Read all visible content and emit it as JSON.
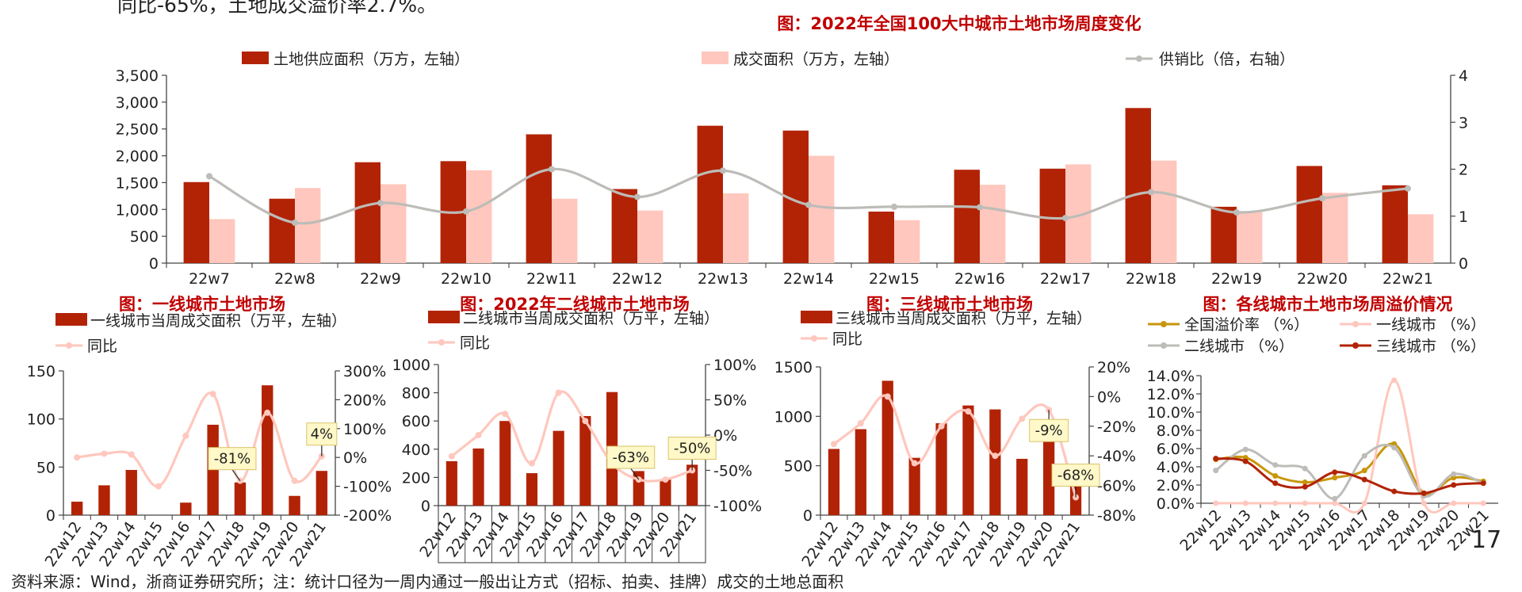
{
  "page": {
    "top_fragment": "同比-65%，土地成交溢价率2.7%。",
    "footer": "资料来源：Wind，浙商证券研究所；注：统计口径为一周内通过一般出让方式（招标、拍卖、挂牌）成交的土地总面积",
    "page_number": "17"
  },
  "colors": {
    "dark_red": "#b22306",
    "pink": "#ffc7bd",
    "gray": "#bdbcb8",
    "gold": "#c8960c",
    "title_red": "#c00000"
  },
  "chart_data": [
    {
      "id": "main",
      "type": "bar",
      "title": "图：2022年全国100大中城市土地市场周度变化",
      "categories": [
        "22w7",
        "22w8",
        "22w9",
        "22w10",
        "22w11",
        "22w12",
        "22w13",
        "22w14",
        "22w15",
        "22w16",
        "22w17",
        "22w18",
        "22w19",
        "22w20",
        "22w21"
      ],
      "series": [
        {
          "name": "土地供应面积（万方，左轴）",
          "type": "bar",
          "axis": "left",
          "values": [
            1510,
            1200,
            1880,
            1900,
            2400,
            1380,
            2560,
            2470,
            960,
            1740,
            1760,
            2890,
            1050,
            1810,
            1450
          ]
        },
        {
          "name": "成交面积（万方，左轴）",
          "type": "bar",
          "axis": "left",
          "values": [
            820,
            1400,
            1470,
            1730,
            1200,
            980,
            1300,
            2000,
            800,
            1460,
            1840,
            1910,
            970,
            1310,
            910
          ]
        },
        {
          "name": "供销比（倍，右轴）",
          "type": "line",
          "axis": "right",
          "values": [
            1.85,
            0.86,
            1.28,
            1.1,
            2.0,
            1.41,
            1.97,
            1.24,
            1.2,
            1.19,
            0.96,
            1.51,
            1.08,
            1.38,
            1.59
          ]
        }
      ],
      "y_left": {
        "min": 0,
        "max": 3500,
        "ticks": [
          "0",
          "500",
          "1,000",
          "1,500",
          "2,000",
          "2,500",
          "3,000",
          "3,500"
        ]
      },
      "y_right": {
        "min": 0,
        "max": 4,
        "ticks": [
          "0",
          "1",
          "2",
          "3",
          "4"
        ]
      }
    },
    {
      "id": "tier1",
      "type": "bar",
      "title": "图：一线城市土地市场",
      "categories": [
        "22w12",
        "22w13",
        "22w14",
        "22w15",
        "22w16",
        "22w17",
        "22w18",
        "22w19",
        "22w20",
        "22w21"
      ],
      "series": [
        {
          "name": "一线城市当周成交面积（万平，左轴）",
          "type": "bar",
          "axis": "left",
          "values": [
            14,
            31,
            47,
            0,
            13,
            94,
            34,
            135,
            20,
            46
          ]
        },
        {
          "name": "同比",
          "type": "line",
          "axis": "right",
          "values": [
            0,
            13,
            10,
            -100,
            75,
            220,
            -81,
            155,
            -81,
            4
          ]
        }
      ],
      "y_left": {
        "min": 0,
        "max": 150,
        "ticks": [
          "0",
          "50",
          "100",
          "150"
        ]
      },
      "y_right": {
        "min": -200,
        "max": 300,
        "ticks": [
          "-200%",
          "-100%",
          "0%",
          "100%",
          "200%",
          "300%"
        ]
      },
      "callouts": [
        {
          "label": "-81%",
          "index": 6
        },
        {
          "label": "4%",
          "index": 9
        }
      ]
    },
    {
      "id": "tier2",
      "type": "bar",
      "title": "图：2022年二线城市土地市场",
      "categories": [
        "22w12",
        "22w13",
        "22w14",
        "22w15",
        "22w16",
        "22w17",
        "22w18",
        "22w19",
        "22w20",
        "22w21"
      ],
      "series": [
        {
          "name": "二线城市当周成交面积（万平，左轴）",
          "type": "bar",
          "axis": "left",
          "values": [
            315,
            405,
            600,
            230,
            530,
            635,
            805,
            245,
            185,
            290
          ]
        },
        {
          "name": "同比",
          "type": "line",
          "axis": "right",
          "values": [
            -30,
            0,
            30,
            -40,
            60,
            20,
            -40,
            -63,
            -63,
            -50
          ]
        }
      ],
      "y_left": {
        "min": 0,
        "max": 1000,
        "ticks": [
          "0",
          "200",
          "400",
          "600",
          "800",
          "1000"
        ]
      },
      "y_right": {
        "min": -100,
        "max": 100,
        "ticks": [
          "-100%",
          "-50%",
          "0%",
          "50%",
          "100%"
        ]
      },
      "callouts": [
        {
          "label": "-63%",
          "index": 7
        },
        {
          "label": "-50%",
          "index": 9
        }
      ]
    },
    {
      "id": "tier3",
      "type": "bar",
      "title": "图：三线城市土地市场",
      "categories": [
        "22w12",
        "22w13",
        "22w14",
        "22w15",
        "22w16",
        "22w17",
        "22w18",
        "22w19",
        "22w20",
        "22w21"
      ],
      "series": [
        {
          "name": "三线城市当周成交面积（万平，左轴）",
          "type": "bar",
          "axis": "left",
          "values": [
            670,
            870,
            1360,
            580,
            930,
            1110,
            1070,
            570,
            960,
            460
          ]
        },
        {
          "name": "同比",
          "type": "line",
          "axis": "right",
          "values": [
            -32,
            -18,
            0,
            -45,
            -20,
            -10,
            -40,
            -15,
            -9,
            -68
          ]
        }
      ],
      "y_left": {
        "min": 0,
        "max": 1500,
        "ticks": [
          "0",
          "500",
          "1000",
          "1500"
        ]
      },
      "y_right": {
        "min": -80,
        "max": 20,
        "ticks": [
          "-80%",
          "-60%",
          "-40%",
          "-20%",
          "0%",
          "20%"
        ]
      },
      "callouts": [
        {
          "label": "-9%",
          "index": 8
        },
        {
          "label": "-68%",
          "index": 9
        }
      ]
    },
    {
      "id": "premium",
      "type": "line",
      "title": "图：各线城市土地市场周溢价情况",
      "categories": [
        "22w12",
        "22w13",
        "22w14",
        "22w15",
        "22w16",
        "22w17",
        "22w18",
        "22w19",
        "22w20",
        "22w21"
      ],
      "series": [
        {
          "name": "全国溢价率 （%）",
          "values": [
            4.8,
            5.0,
            3.0,
            2.3,
            2.8,
            3.6,
            6.5,
            1.1,
            2.8,
            2.4
          ]
        },
        {
          "name": "一线城市 （%）",
          "values": [
            0,
            0,
            0,
            0,
            0,
            0,
            13.5,
            0,
            0,
            0
          ]
        },
        {
          "name": "二线城市 （%）",
          "values": [
            3.6,
            5.9,
            4.2,
            3.8,
            0.5,
            5.2,
            6.1,
            0.8,
            3.2,
            2.2
          ]
        },
        {
          "name": "三线城市 （%）",
          "values": [
            4.9,
            4.6,
            2.2,
            1.8,
            3.4,
            2.6,
            1.3,
            1.1,
            2.0,
            2.2
          ]
        }
      ],
      "y": {
        "min": 0,
        "max": 14,
        "ticks": [
          "0.0%",
          "2.0%",
          "4.0%",
          "6.0%",
          "8.0%",
          "10.0%",
          "12.0%",
          "14.0%"
        ]
      }
    }
  ]
}
